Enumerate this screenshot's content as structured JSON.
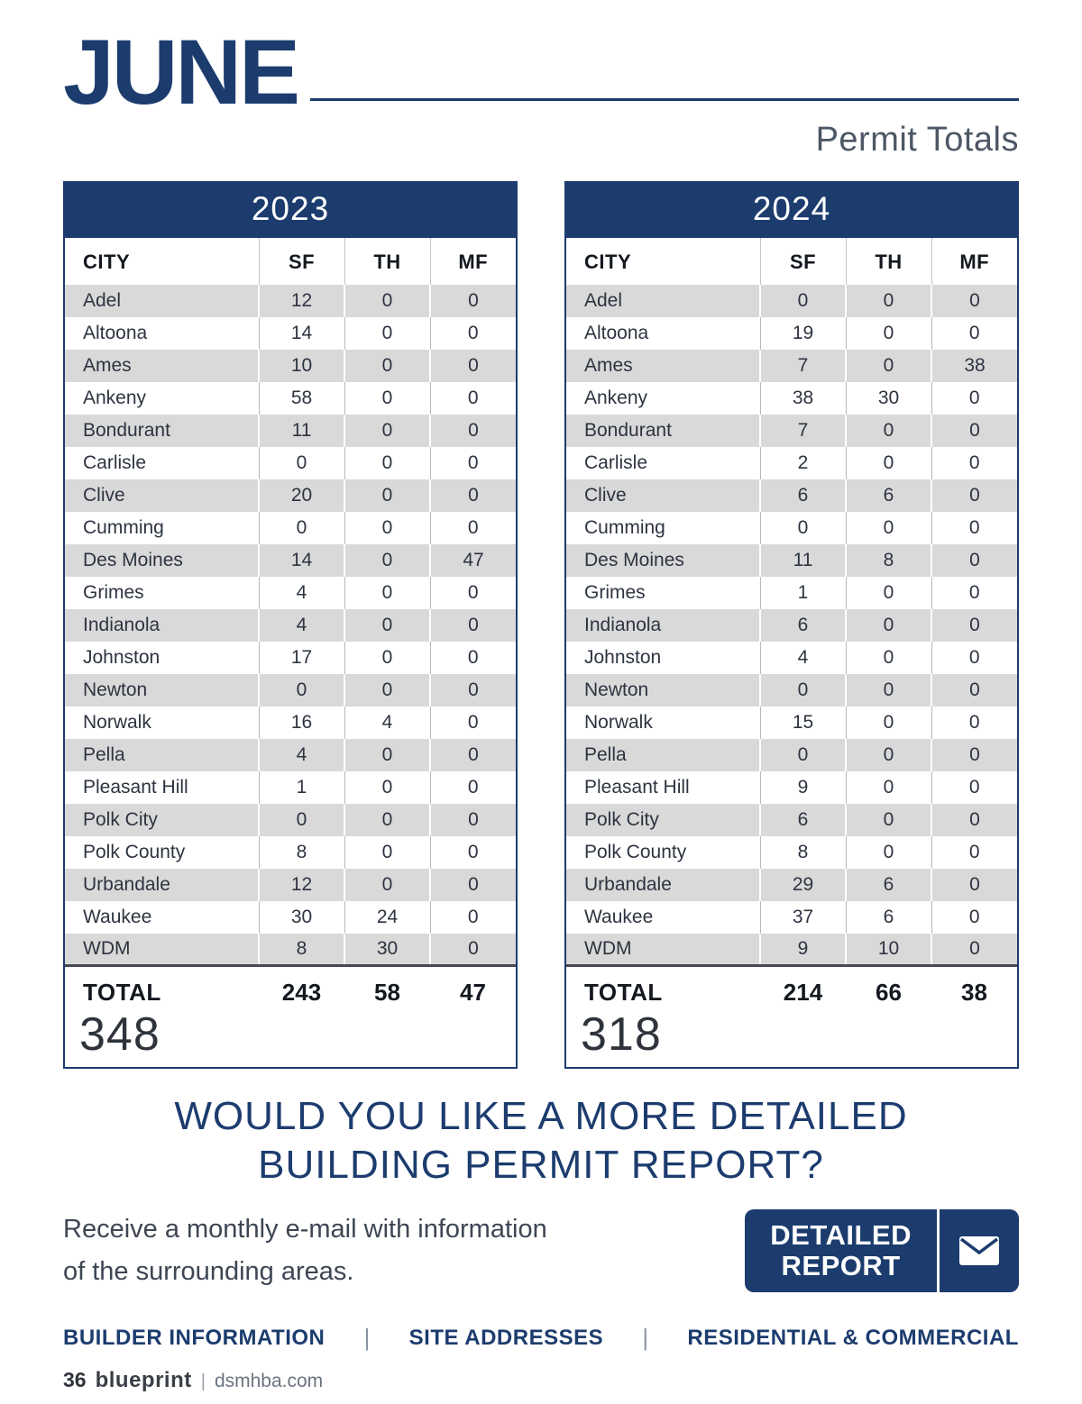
{
  "header": {
    "month": "JUNE",
    "subtitle": "Permit Totals"
  },
  "tables": [
    {
      "year": "2023",
      "columns": [
        "CITY",
        "SF",
        "TH",
        "MF"
      ],
      "rows": [
        [
          "Adel",
          12,
          0,
          0
        ],
        [
          "Altoona",
          14,
          0,
          0
        ],
        [
          "Ames",
          10,
          0,
          0
        ],
        [
          "Ankeny",
          58,
          0,
          0
        ],
        [
          "Bondurant",
          11,
          0,
          0
        ],
        [
          "Carlisle",
          0,
          0,
          0
        ],
        [
          "Clive",
          20,
          0,
          0
        ],
        [
          "Cumming",
          0,
          0,
          0
        ],
        [
          "Des Moines",
          14,
          0,
          47
        ],
        [
          "Grimes",
          4,
          0,
          0
        ],
        [
          "Indianola",
          4,
          0,
          0
        ],
        [
          "Johnston",
          17,
          0,
          0
        ],
        [
          "Newton",
          0,
          0,
          0
        ],
        [
          "Norwalk",
          16,
          4,
          0
        ],
        [
          "Pella",
          4,
          0,
          0
        ],
        [
          "Pleasant Hill",
          1,
          0,
          0
        ],
        [
          "Polk City",
          0,
          0,
          0
        ],
        [
          "Polk County",
          8,
          0,
          0
        ],
        [
          "Urbandale",
          12,
          0,
          0
        ],
        [
          "Waukee",
          30,
          24,
          0
        ],
        [
          "WDM",
          8,
          30,
          0
        ]
      ],
      "total_label": "TOTAL",
      "totals": [
        243,
        58,
        47
      ],
      "grand_total": "348"
    },
    {
      "year": "2024",
      "columns": [
        "CITY",
        "SF",
        "TH",
        "MF"
      ],
      "rows": [
        [
          "Adel",
          0,
          0,
          0
        ],
        [
          "Altoona",
          19,
          0,
          0
        ],
        [
          "Ames",
          7,
          0,
          38
        ],
        [
          "Ankeny",
          38,
          30,
          0
        ],
        [
          "Bondurant",
          7,
          0,
          0
        ],
        [
          "Carlisle",
          2,
          0,
          0
        ],
        [
          "Clive",
          6,
          6,
          0
        ],
        [
          "Cumming",
          0,
          0,
          0
        ],
        [
          "Des Moines",
          11,
          8,
          0
        ],
        [
          "Grimes",
          1,
          0,
          0
        ],
        [
          "Indianola",
          6,
          0,
          0
        ],
        [
          "Johnston",
          4,
          0,
          0
        ],
        [
          "Newton",
          0,
          0,
          0
        ],
        [
          "Norwalk",
          15,
          0,
          0
        ],
        [
          "Pella",
          0,
          0,
          0
        ],
        [
          "Pleasant Hill",
          9,
          0,
          0
        ],
        [
          "Polk City",
          6,
          0,
          0
        ],
        [
          "Polk County",
          8,
          0,
          0
        ],
        [
          "Urbandale",
          29,
          6,
          0
        ],
        [
          "Waukee",
          37,
          6,
          0
        ],
        [
          "WDM",
          9,
          10,
          0
        ]
      ],
      "total_label": "TOTAL",
      "totals": [
        214,
        66,
        38
      ],
      "grand_total": "318"
    }
  ],
  "cta": {
    "heading_line1": "WOULD YOU LIKE A MORE DETAILED",
    "heading_line2": "BUILDING PERMIT REPORT?",
    "body_line1": "Receive a monthly e-mail with information",
    "body_line2": "of the surrounding areas.",
    "button": {
      "line1": "DETAILED",
      "line2": "REPORT",
      "icon": "envelope-icon"
    }
  },
  "footer_nav": {
    "items": [
      "BUILDER INFORMATION",
      "SITE ADDRESSES",
      "RESIDENTIAL & COMMERCIAL"
    ],
    "divider": "|"
  },
  "footer": {
    "page_number": "36",
    "brand": "blueprint",
    "divider": "|",
    "site": "dsmhba.com"
  },
  "colors": {
    "navy": "#1c3c6e",
    "row_gray": "#d9d9d9",
    "text_dark": "#2d3440",
    "text_muted": "#4d5765"
  }
}
